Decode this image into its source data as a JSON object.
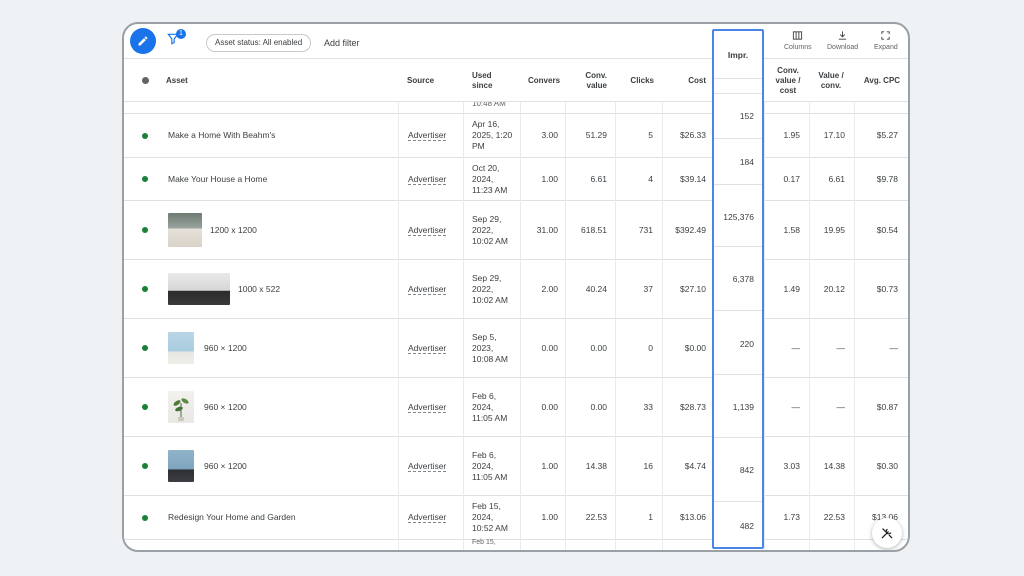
{
  "toolbar": {
    "filter_count": "1",
    "asset_status_chip": "Asset status: All enabled",
    "add_filter": "Add filter",
    "columns_label": "Columns",
    "download_label": "Download",
    "expand_label": "Expand"
  },
  "table": {
    "headers": {
      "asset": "Asset",
      "source": "Source",
      "used_since": "Used since",
      "conversions": "Convers",
      "conv_value": "Conv. value",
      "clicks": "Clicks",
      "cost": "Cost",
      "impr": "Impr.",
      "conv_value_cost": "Conv. value / cost",
      "value_conv": "Value / conv.",
      "avg_cpc": "Avg. CPC"
    },
    "partial_top_used_since": "10:48 AM",
    "partial_bottom_used_since": "Feb 15,",
    "rows": [
      {
        "asset": "Make a Home With Beahm's",
        "source": "Advertiser",
        "used_since": "Apr 16, 2025, 1:20 PM",
        "conversions": "3.00",
        "conv_value": "51.29",
        "clicks": "5",
        "cost": "$26.33",
        "impr": "152",
        "conv_value_cost": "1.95",
        "value_conv": "17.10",
        "avg_cpc": "$5.27"
      },
      {
        "asset": "Make Your House a Home",
        "source": "Advertiser",
        "used_since": "Oct 20, 2024, 11:23 AM",
        "conversions": "1.00",
        "conv_value": "6.61",
        "clicks": "4",
        "cost": "$39.14",
        "impr": "184",
        "conv_value_cost": "0.17",
        "value_conv": "6.61",
        "avg_cpc": "$9.78"
      },
      {
        "asset": "1200 x 1200",
        "source": "Advertiser",
        "used_since": "Sep 29, 2022, 10:02 AM",
        "conversions": "31.00",
        "conv_value": "618.51",
        "clicks": "731",
        "cost": "$392.49",
        "impr": "125,376",
        "conv_value_cost": "1.58",
        "value_conv": "19.95",
        "avg_cpc": "$0.54"
      },
      {
        "asset": "1000 x 522",
        "source": "Advertiser",
        "used_since": "Sep 29, 2022, 10:02 AM",
        "conversions": "2.00",
        "conv_value": "40.24",
        "clicks": "37",
        "cost": "$27.10",
        "impr": "6,378",
        "conv_value_cost": "1.49",
        "value_conv": "20.12",
        "avg_cpc": "$0.73"
      },
      {
        "asset": "960 × 1200",
        "source": "Advertiser",
        "used_since": "Sep 5, 2023, 10:08 AM",
        "conversions": "0.00",
        "conv_value": "0.00",
        "clicks": "0",
        "cost": "$0.00",
        "impr": "220",
        "conv_value_cost": "—",
        "value_conv": "—",
        "avg_cpc": "—"
      },
      {
        "asset": "960 × 1200",
        "source": "Advertiser",
        "used_since": "Feb 6, 2024, 11:05 AM",
        "conversions": "0.00",
        "conv_value": "0.00",
        "clicks": "33",
        "cost": "$28.73",
        "impr": "1,139",
        "conv_value_cost": "—",
        "value_conv": "—",
        "avg_cpc": "$0.87"
      },
      {
        "asset": "960 × 1200",
        "source": "Advertiser",
        "used_since": "Feb 6, 2024, 11:05 AM",
        "conversions": "1.00",
        "conv_value": "14.38",
        "clicks": "16",
        "cost": "$4.74",
        "impr": "842",
        "conv_value_cost": "3.03",
        "value_conv": "14.38",
        "avg_cpc": "$0.30"
      },
      {
        "asset": "Redesign Your Home and Garden",
        "source": "Advertiser",
        "used_since": "Feb 15, 2024, 10:52 AM",
        "conversions": "1.00",
        "conv_value": "22.53",
        "clicks": "1",
        "cost": "$13.06",
        "impr": "482",
        "conv_value_cost": "1.73",
        "value_conv": "22.53",
        "avg_cpc": "$13.06"
      }
    ]
  },
  "colors": {
    "accent": "#1a73e8",
    "status_enabled": "#188038",
    "highlight_border": "#4a86e8"
  },
  "icons": [
    "pencil-icon",
    "filter-icon",
    "columns-icon",
    "download-icon",
    "expand-icon",
    "tools-icon"
  ]
}
